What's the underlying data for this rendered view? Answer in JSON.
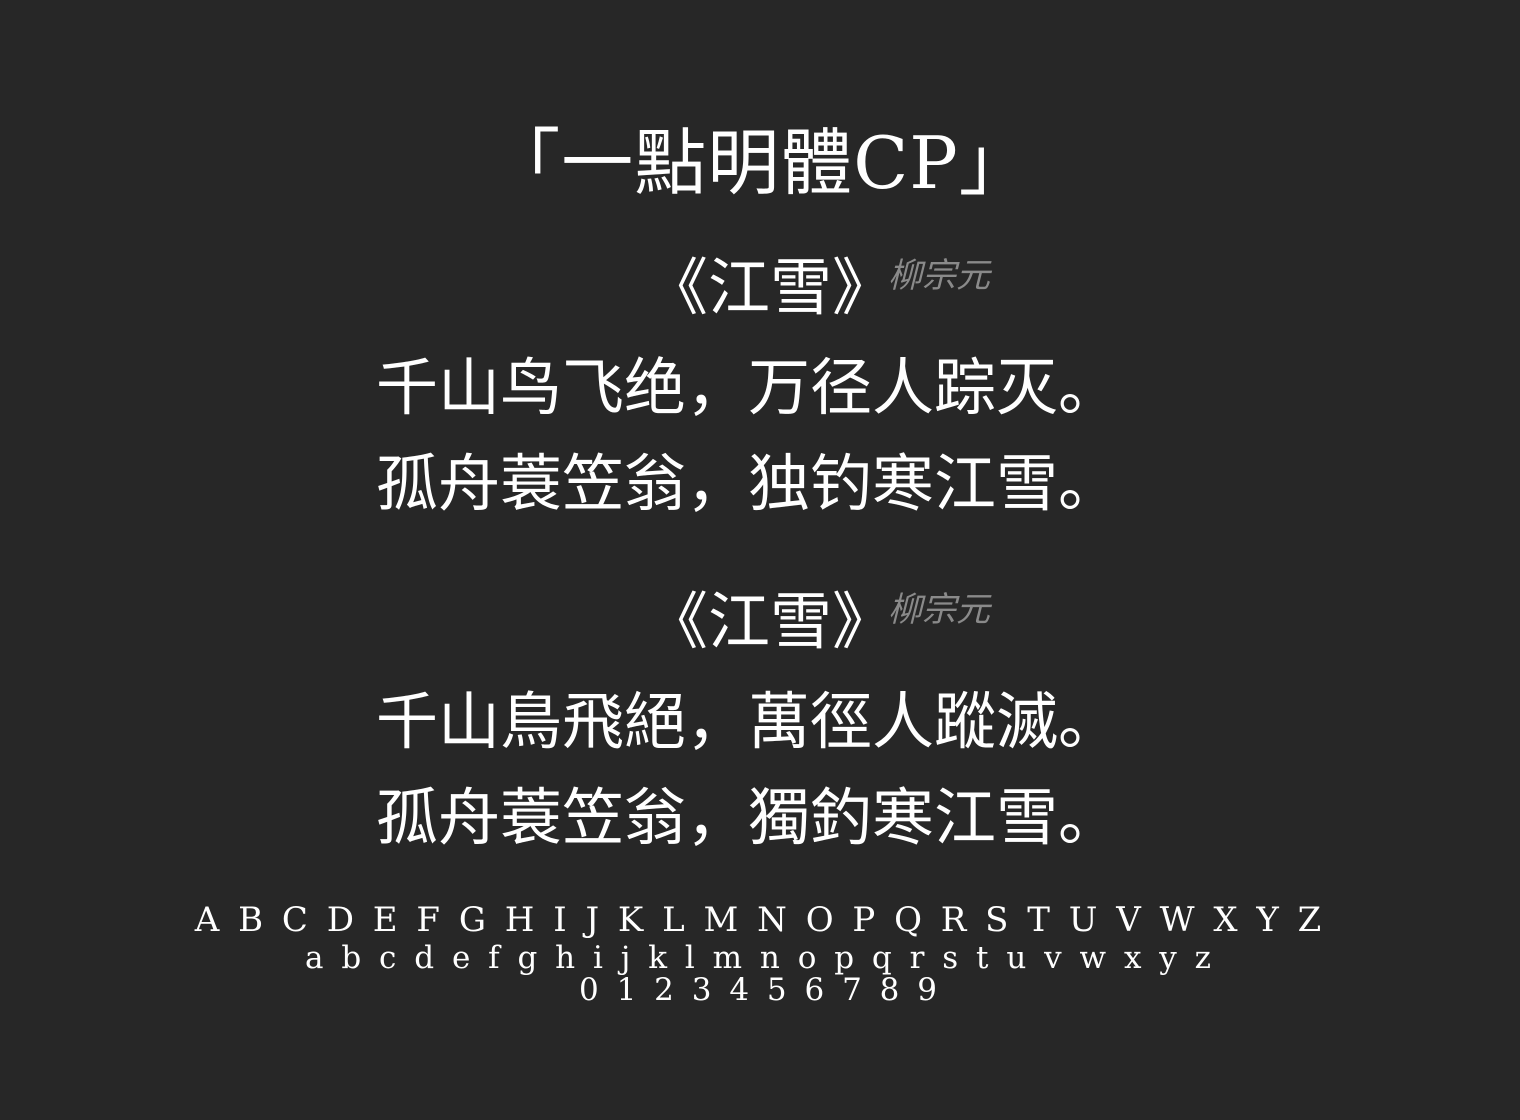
{
  "title": "「一點明體CP」",
  "poems": [
    {
      "title": "《江雪》",
      "author": "柳宗元",
      "lines": [
        "千山鸟飞绝，万径人踪灭。",
        "孤舟蓑笠翁，独钓寒江雪。"
      ]
    },
    {
      "title": "《江雪》",
      "author": "柳宗元",
      "lines": [
        "千山鳥飛絕，萬徑人蹤滅。",
        "孤舟蓑笠翁，獨釣寒江雪。"
      ]
    }
  ],
  "alphabet": {
    "uppercase": "A B C D E F G H I J K L M N O P Q R S T U V W X Y Z",
    "lowercase": "a b c d e f g h i j k l m n o p q r s t u v w x y z",
    "digits": "0 1 2 3 4 5 6 7 8 9"
  },
  "colors": {
    "background": "#272727",
    "text": "#ffffff",
    "author": "#8a8a8a"
  }
}
